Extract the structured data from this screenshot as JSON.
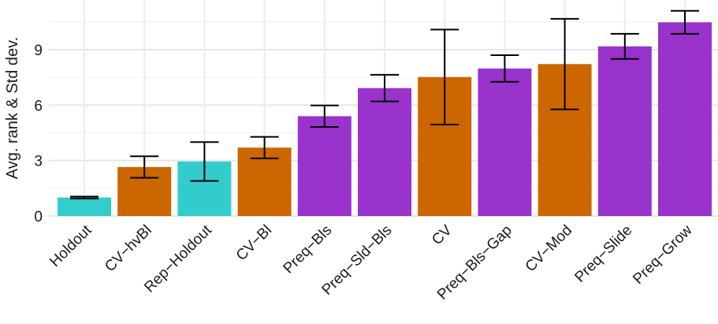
{
  "chart_data": {
    "type": "bar",
    "title": "",
    "xlabel": "",
    "ylabel": "Avg. rank & Std dev.",
    "ylim": [
      0,
      11.2
    ],
    "yticks": [
      0,
      3,
      6,
      9
    ],
    "grid": true,
    "legend": "none",
    "categories": [
      "Holdout",
      "CV−hvBl",
      "Rep−Holdout",
      "CV−Bl",
      "Preq−Bls",
      "Preq−Sld−Bls",
      "CV",
      "Preq−Bls−Gap",
      "CV−Mod",
      "Preq−Slide",
      "Preq−Grow"
    ],
    "values": [
      1.0,
      2.65,
      2.95,
      3.7,
      5.4,
      6.92,
      7.52,
      7.98,
      8.22,
      9.18,
      10.48
    ],
    "errors": [
      0.05,
      0.58,
      1.05,
      0.58,
      0.58,
      0.72,
      2.57,
      0.72,
      2.45,
      0.68,
      0.62
    ],
    "bar_colors": [
      "#33CCCC",
      "#CC6600",
      "#33CCCC",
      "#CC6600",
      "#9933CC",
      "#9933CC",
      "#CC6600",
      "#9933CC",
      "#CC6600",
      "#9933CC",
      "#9933CC"
    ]
  }
}
